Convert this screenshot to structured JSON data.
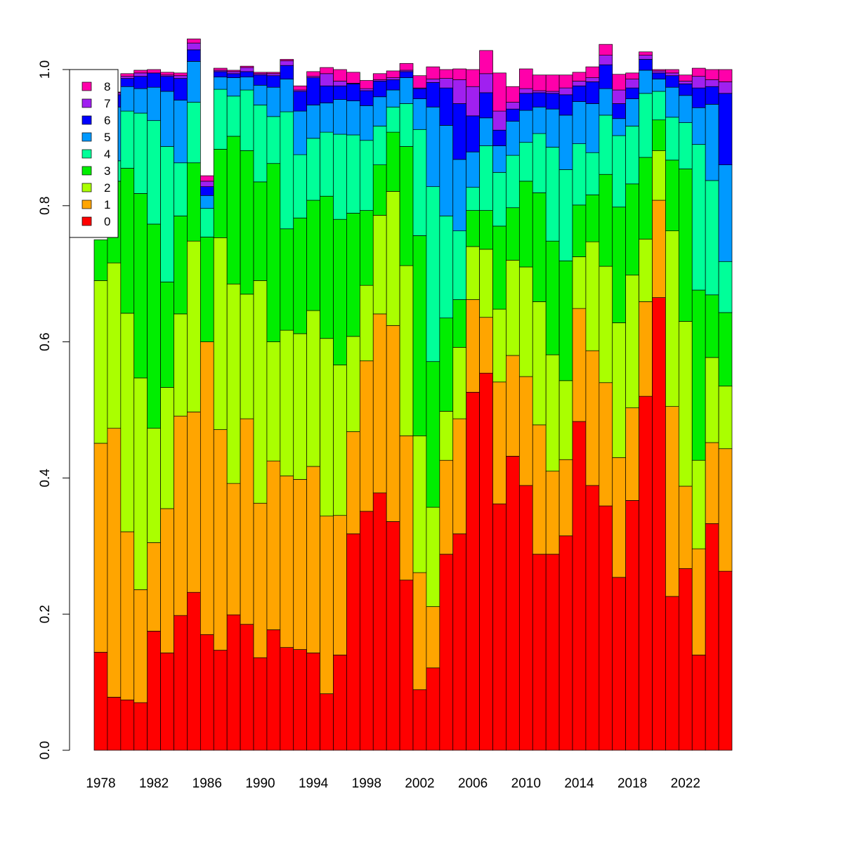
{
  "chart_data": {
    "type": "bar",
    "stacked": true,
    "normalized": true,
    "title": "",
    "xlabel": "",
    "ylabel": "",
    "ylim": [
      0,
      1
    ],
    "yticks": [
      "0.0",
      "0.2",
      "0.4",
      "0.6",
      "0.8",
      "1.0"
    ],
    "x_tick_labels": [
      "1978",
      "1982",
      "1986",
      "1990",
      "1994",
      "1998",
      "2002",
      "2006",
      "2010",
      "2014",
      "2018",
      "2022"
    ],
    "categories": [
      "1978",
      "1979",
      "1980",
      "1981",
      "1982",
      "1983",
      "1984",
      "1985",
      "1986",
      "1987",
      "1988",
      "1989",
      "1990",
      "1991",
      "1992",
      "1993",
      "1994",
      "1995",
      "1996",
      "1997",
      "1998",
      "1999",
      "2000",
      "2001",
      "2002",
      "2003",
      "2004",
      "2005",
      "2006",
      "2007",
      "2008",
      "2009",
      "2010",
      "2011",
      "2012",
      "2013",
      "2014",
      "2015",
      "2016",
      "2017",
      "2018",
      "2019",
      "2020",
      "2021",
      "2022",
      "2023",
      "2024",
      "2025"
    ],
    "grid": false,
    "legend_position": "top-left",
    "series": [
      {
        "name": "0",
        "color": "#FF0000",
        "values": [
          0.144,
          0.078,
          0.074,
          0.07,
          0.175,
          0.143,
          0.198,
          0.232,
          0.17,
          0.147,
          0.199,
          0.185,
          0.136,
          0.177,
          0.151,
          0.148,
          0.143,
          0.083,
          0.14,
          0.318,
          0.351,
          0.378,
          0.336,
          0.25,
          0.089,
          0.121,
          0.288,
          0.318,
          0.526,
          0.554,
          0.362,
          0.432,
          0.389,
          0.288,
          0.288,
          0.315,
          0.483,
          0.389,
          0.359,
          0.254,
          0.367,
          0.52,
          0.665,
          0.226,
          0.267,
          0.14,
          0.333,
          0.263
        ]
      },
      {
        "name": "1",
        "color": "#FFA500",
        "values": [
          0.307,
          0.395,
          0.247,
          0.166,
          0.13,
          0.212,
          0.293,
          0.265,
          0.43,
          0.324,
          0.193,
          0.302,
          0.227,
          0.248,
          0.252,
          0.25,
          0.274,
          0.261,
          0.205,
          0.15,
          0.221,
          0.263,
          0.288,
          0.212,
          0.172,
          0.09,
          0.138,
          0.169,
          0.136,
          0.082,
          0.179,
          0.148,
          0.16,
          0.19,
          0.122,
          0.112,
          0.166,
          0.198,
          0.181,
          0.176,
          0.136,
          0.139,
          0.143,
          0.279,
          0.121,
          0.156,
          0.119,
          0.18
        ]
      },
      {
        "name": "2",
        "color": "#AAFF00",
        "values": [
          0.239,
          0.243,
          0.321,
          0.311,
          0.168,
          0.178,
          0.15,
          0.251,
          0.0,
          0.282,
          0.293,
          0.183,
          0.327,
          0.175,
          0.214,
          0.214,
          0.229,
          0.261,
          0.221,
          0.14,
          0.111,
          0.145,
          0.197,
          0.25,
          0.201,
          0.146,
          0.072,
          0.105,
          0.078,
          0.1,
          0.107,
          0.14,
          0.161,
          0.181,
          0.171,
          0.116,
          0.076,
          0.16,
          0.171,
          0.198,
          0.195,
          0.092,
          0.073,
          0.258,
          0.242,
          0.13,
          0.125,
          0.092
        ]
      },
      {
        "name": "3",
        "color": "#00EE00",
        "values": [
          0.06,
          0.12,
          0.213,
          0.271,
          0.3,
          0.155,
          0.144,
          0.115,
          0.154,
          0.13,
          0.217,
          0.211,
          0.145,
          0.262,
          0.149,
          0.17,
          0.162,
          0.209,
          0.214,
          0.181,
          0.11,
          0.074,
          0.087,
          0.175,
          0.294,
          0.214,
          0.137,
          0.07,
          0.053,
          0.057,
          0.122,
          0.077,
          0.126,
          0.16,
          0.167,
          0.176,
          0.076,
          0.069,
          0.135,
          0.17,
          0.134,
          0.12,
          0.045,
          0.104,
          0.224,
          0.25,
          0.092,
          0.108
        ]
      },
      {
        "name": "4",
        "color": "#00FF99",
        "values": [
          0.0,
          0.03,
          0.084,
          0.118,
          0.152,
          0.199,
          0.078,
          0.089,
          0.042,
          0.088,
          0.059,
          0.089,
          0.113,
          0.069,
          0.172,
          0.093,
          0.091,
          0.094,
          0.125,
          0.115,
          0.103,
          0.057,
          0.037,
          0.063,
          0.156,
          0.257,
          0.15,
          0.101,
          0.034,
          0.095,
          0.079,
          0.077,
          0.057,
          0.087,
          0.138,
          0.134,
          0.09,
          0.062,
          0.087,
          0.105,
          0.085,
          0.094,
          0.042,
          0.063,
          0.068,
          0.214,
          0.168,
          0.075
        ]
      },
      {
        "name": "5",
        "color": "#0099FF",
        "values": [
          0.0,
          0.079,
          0.036,
          0.036,
          0.049,
          0.081,
          0.092,
          0.06,
          0.019,
          0.018,
          0.027,
          0.019,
          0.029,
          0.043,
          0.048,
          0.064,
          0.049,
          0.043,
          0.051,
          0.05,
          0.051,
          0.043,
          0.025,
          0.038,
          0.045,
          0.117,
          0.133,
          0.105,
          0.052,
          0.041,
          0.039,
          0.05,
          0.047,
          0.039,
          0.056,
          0.08,
          0.062,
          0.072,
          0.039,
          0.025,
          0.04,
          0.034,
          0.018,
          0.044,
          0.04,
          0.054,
          0.112,
          0.142
        ]
      },
      {
        "name": "6",
        "color": "#0000FF",
        "values": [
          0.0,
          0.018,
          0.012,
          0.018,
          0.021,
          0.022,
          0.032,
          0.017,
          0.013,
          0.008,
          0.006,
          0.008,
          0.015,
          0.017,
          0.02,
          0.029,
          0.04,
          0.025,
          0.02,
          0.025,
          0.022,
          0.023,
          0.015,
          0.009,
          0.015,
          0.036,
          0.055,
          0.082,
          0.053,
          0.037,
          0.023,
          0.018,
          0.025,
          0.021,
          0.023,
          0.03,
          0.023,
          0.032,
          0.035,
          0.022,
          0.016,
          0.016,
          0.009,
          0.017,
          0.017,
          0.029,
          0.026,
          0.105
        ]
      },
      {
        "name": "7",
        "color": "#A020F0",
        "values": [
          0.0,
          0.003,
          0.003,
          0.005,
          0.0,
          0.002,
          0.004,
          0.01,
          0.008,
          0.002,
          0.003,
          0.006,
          0.002,
          0.003,
          0.007,
          0.002,
          0.002,
          0.018,
          0.007,
          0.001,
          0.003,
          0.002,
          0.003,
          0.002,
          0.001,
          0.005,
          0.014,
          0.035,
          0.043,
          0.028,
          0.028,
          0.01,
          0.007,
          0.003,
          0.003,
          0.01,
          0.007,
          0.006,
          0.014,
          0.02,
          0.013,
          0.006,
          0.003,
          0.004,
          0.004,
          0.017,
          0.01,
          0.017
        ]
      },
      {
        "name": "8",
        "color": "#FF00AA",
        "values": [
          0.0,
          0.001,
          0.004,
          0.004,
          0.005,
          0.004,
          0.004,
          0.006,
          0.008,
          0.003,
          0.002,
          0.002,
          0.002,
          0.002,
          0.002,
          0.006,
          0.007,
          0.009,
          0.017,
          0.016,
          0.012,
          0.009,
          0.01,
          0.01,
          0.018,
          0.018,
          0.013,
          0.016,
          0.025,
          0.034,
          0.056,
          0.023,
          0.029,
          0.023,
          0.024,
          0.019,
          0.013,
          0.016,
          0.016,
          0.023,
          0.009,
          0.005,
          0.002,
          0.005,
          0.009,
          0.012,
          0.015,
          0.018
        ]
      }
    ]
  }
}
